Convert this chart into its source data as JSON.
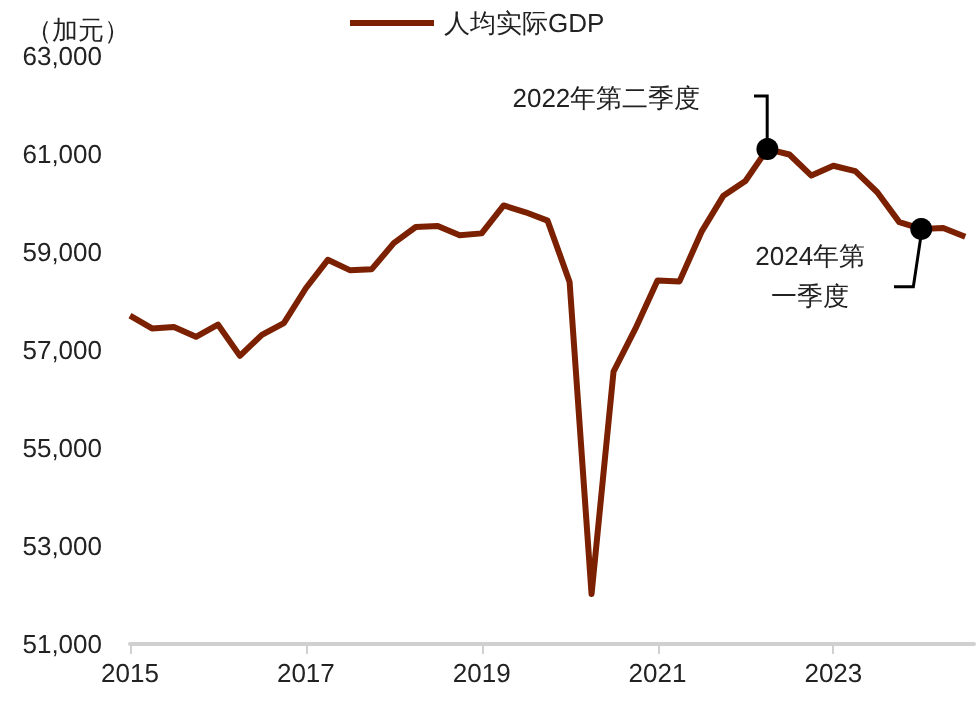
{
  "chart_data": {
    "type": "line",
    "ylabel": "（加元）",
    "legend": "top",
    "grid": false,
    "marker": "none",
    "line_style": "solid",
    "x": [
      2015,
      2015.25,
      2015.5,
      2015.75,
      2016,
      2016.25,
      2016.5,
      2016.75,
      2017,
      2017.25,
      2017.5,
      2017.75,
      2018,
      2018.25,
      2018.5,
      2018.75,
      2019,
      2019.25,
      2019.5,
      2019.75,
      2020,
      2020.25,
      2020.5,
      2020.75,
      2021,
      2021.25,
      2021.5,
      2021.75,
      2022,
      2022.25,
      2022.5,
      2022.75,
      2023,
      2023.25,
      2023.5,
      2023.75,
      2024,
      2024.25,
      2024.5
    ],
    "series": [
      {
        "name": "人均实际GDP",
        "color": "#7b2000",
        "values": [
          57700,
          57440,
          57470,
          57270,
          57520,
          56880,
          57310,
          57550,
          58260,
          58840,
          58630,
          58650,
          59180,
          59510,
          59530,
          59340,
          59380,
          59950,
          59810,
          59640,
          58390,
          52020,
          56560,
          57440,
          58420,
          58400,
          59410,
          60150,
          60450,
          61100,
          60990,
          60560,
          60760,
          60650,
          60220,
          59610,
          59470,
          59490,
          59310
        ]
      }
    ],
    "xlim": [
      2015,
      2024.6
    ],
    "xticks": [
      2015,
      2017,
      2019,
      2021,
      2023
    ],
    "ylim": [
      51000,
      63000
    ],
    "yticks": [
      {
        "value": 51000,
        "label": "51,000"
      },
      {
        "value": 53000,
        "label": "53,000"
      },
      {
        "value": 55000,
        "label": "55,000"
      },
      {
        "value": 57000,
        "label": "57,000"
      },
      {
        "value": 59000,
        "label": "59,000"
      },
      {
        "value": 61000,
        "label": "61,000"
      },
      {
        "value": 63000,
        "label": "63,000"
      }
    ],
    "annotations": [
      {
        "text": "2022年第二季度",
        "x": 2022.25,
        "y": 61100
      },
      {
        "text": "2024年第一季度",
        "x": 2024,
        "y": 59470
      }
    ]
  }
}
